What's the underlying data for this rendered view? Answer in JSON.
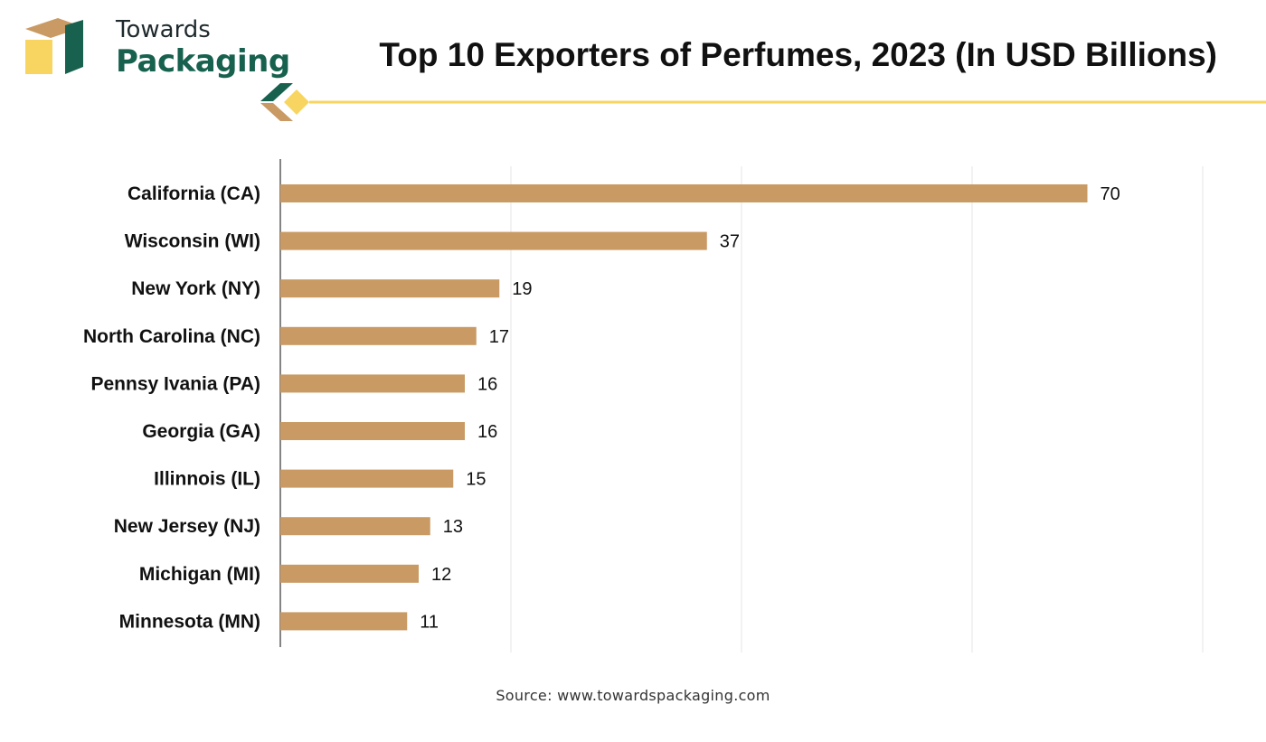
{
  "brand": {
    "name_line1": "Towards",
    "name_line2": "Packaging",
    "colors": {
      "green": "#17614e",
      "tan": "#c99a63",
      "yellow": "#f7d560"
    }
  },
  "chart_data": {
    "type": "bar",
    "orientation": "horizontal",
    "title": "Top 10 Exporters of Perfumes, 2023 (In USD Billions)",
    "categories": [
      "California (CA)",
      "Wisconsin (WI)",
      "New York (NY)",
      "North Carolina (NC)",
      "Pennsy Ivania (PA)",
      "Georgia (GA)",
      "Illinnois (IL)",
      "New Jersey (NJ)",
      "Michigan (MI)",
      "Minnesota (MN)"
    ],
    "values": [
      70,
      37,
      19,
      17,
      16,
      16,
      15,
      13,
      12,
      11
    ],
    "xlim": [
      0,
      80
    ],
    "grid": true,
    "bar_color": "#c99a63",
    "data_labels": true
  },
  "source": "Source: www.towardspackaging.com"
}
